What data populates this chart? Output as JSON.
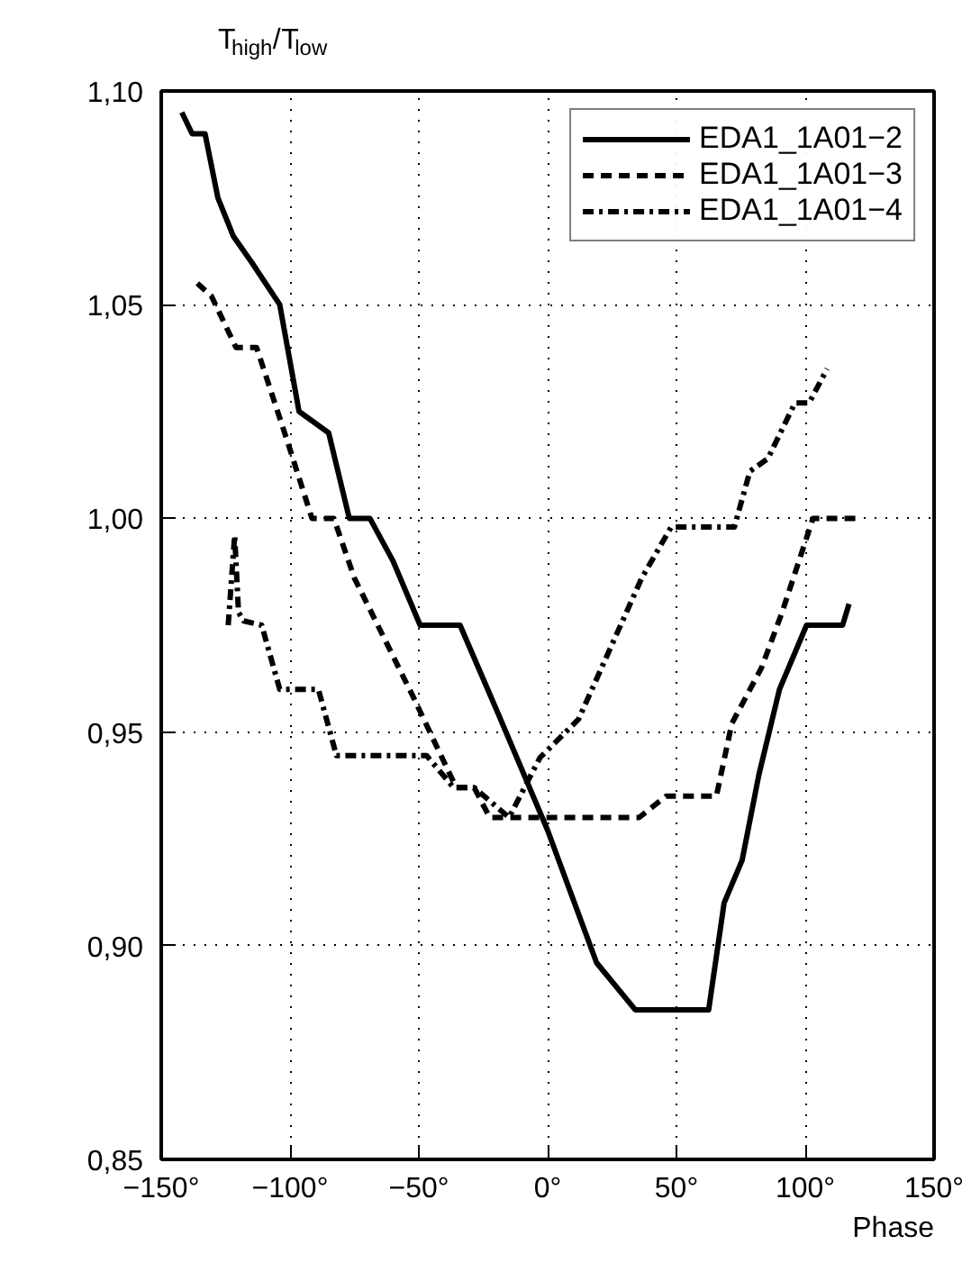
{
  "chart_data": {
    "type": "line",
    "ylabel": "T$_{high}$/T$_{low}$",
    "xlabel": "Phase",
    "xlim": [
      -150,
      150
    ],
    "ylim": [
      0.85,
      1.1
    ],
    "xticks": [
      {
        "value": -150,
        "label": "−150°"
      },
      {
        "value": -100,
        "label": "−100°"
      },
      {
        "value": -50,
        "label": "−50°"
      },
      {
        "value": 0,
        "label": "0°"
      },
      {
        "value": 50,
        "label": "50°"
      },
      {
        "value": 100,
        "label": "100°"
      },
      {
        "value": 150,
        "label": "150°"
      }
    ],
    "yticks": [
      {
        "value": 0.85,
        "label": "0,85"
      },
      {
        "value": 0.9,
        "label": "0,90"
      },
      {
        "value": 0.95,
        "label": "0,95"
      },
      {
        "value": 1.0,
        "label": "1,00"
      },
      {
        "value": 1.05,
        "label": "1,05"
      },
      {
        "value": 1.1,
        "label": "1,10"
      }
    ],
    "grid": true,
    "legend": "top right",
    "marker": "none",
    "series": [
      {
        "name": "EDA1_1A01−2",
        "color": "#000000",
        "line_style": "solid",
        "x": [
          -142,
          -138,
          -133,
          -128,
          -122,
          -115,
          -104,
          -96.5,
          -85,
          -77,
          -69,
          -60,
          -49.5,
          -34,
          -19,
          0,
          19,
          34,
          62.5,
          68.5,
          75.5,
          82,
          90,
          100.5,
          114.5,
          117
        ],
        "values": [
          1.095,
          1.09,
          1.09,
          1.075,
          1.066,
          1.06,
          1.05,
          1.025,
          1.02,
          1.0,
          1.0,
          0.99,
          0.975,
          0.975,
          0.954,
          0.927,
          0.896,
          0.885,
          0.885,
          0.91,
          0.92,
          0.94,
          0.96,
          0.975,
          0.975,
          0.98
        ]
      },
      {
        "name": "EDA1_1A01−3",
        "color": "#000000",
        "line_style": "dashed",
        "x": [
          -136,
          -130.5,
          -121,
          -113,
          -101,
          -91.5,
          -83,
          -75,
          -52,
          -35.5,
          -28.5,
          -22.5,
          35.5,
          46,
          65.5,
          71.5,
          83,
          91,
          103,
          122
        ],
        "values": [
          1.055,
          1.052,
          1.04,
          1.04,
          1.018,
          1.0,
          1.0,
          0.986,
          0.958,
          0.937,
          0.937,
          0.93,
          0.93,
          0.935,
          0.935,
          0.952,
          0.965,
          0.978,
          1.0,
          1.0
        ]
      },
      {
        "name": "EDA1_1A01−4",
        "color": "#000000",
        "line_style": "dashdot",
        "x": [
          -124,
          -121.5,
          -120,
          -118,
          -111,
          -104,
          -89,
          -82,
          -47,
          -36.5,
          -28.5,
          -15,
          -3,
          12,
          36.5,
          48,
          72.5,
          78.5,
          85.5,
          96,
          101.5,
          108.5
        ],
        "values": [
          0.975,
          0.996,
          0.978,
          0.976,
          0.975,
          0.96,
          0.96,
          0.9445,
          0.9445,
          0.937,
          0.937,
          0.93,
          0.944,
          0.953,
          0.986,
          0.998,
          0.998,
          1.011,
          1.014,
          1.027,
          1.027,
          1.035
        ]
      }
    ]
  }
}
